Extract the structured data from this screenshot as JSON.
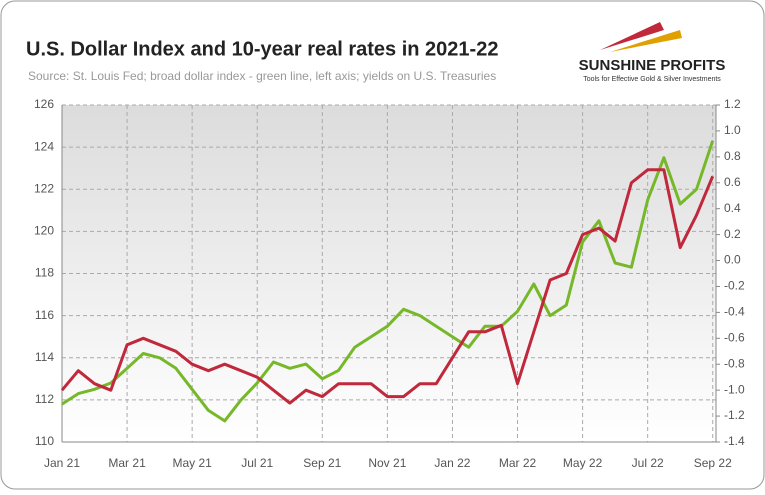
{
  "chart_data": {
    "type": "line",
    "title": "U.S. Dollar Index and 10-year real rates in 2021-22",
    "subtitle": "Source: St. Louis Fed; broad dollar index - green line, left axis; yields on U.S. Treasuries",
    "logo": {
      "name": "SUNSHINE PROFITS",
      "tagline": "Tools for Effective Gold & Silver Investments"
    },
    "x": [
      0,
      0.5,
      1,
      1.5,
      2,
      2.5,
      3,
      3.5,
      4,
      4.5,
      5,
      5.5,
      6,
      6.5,
      7,
      7.5,
      8,
      8.5,
      9,
      9.5,
      10,
      10.5,
      11,
      11.5,
      12,
      12.5,
      13,
      13.5,
      14,
      14.5,
      15,
      15.5,
      16,
      16.5,
      17,
      17.5,
      18,
      18.5,
      19,
      19.5,
      20
    ],
    "xlim": [
      0,
      20.1
    ],
    "xticks": [
      {
        "value": 0,
        "label": "Jan 21"
      },
      {
        "value": 2,
        "label": "Mar 21"
      },
      {
        "value": 4,
        "label": "May 21"
      },
      {
        "value": 6,
        "label": "Jul 21"
      },
      {
        "value": 8,
        "label": "Sep 21"
      },
      {
        "value": 10,
        "label": "Nov 21"
      },
      {
        "value": 12,
        "label": "Jan 22"
      },
      {
        "value": 14,
        "label": "Mar 22"
      },
      {
        "value": 16,
        "label": "May 22"
      },
      {
        "value": 18,
        "label": "Jul 22"
      },
      {
        "value": 20,
        "label": "Sep 22"
      }
    ],
    "ylim": [
      110,
      126
    ],
    "yticks": [
      110,
      112,
      114,
      116,
      118,
      120,
      122,
      124,
      126
    ],
    "y2lim": [
      -1.4,
      1.2
    ],
    "y2ticks": [
      -1.4,
      -1.2,
      {
        "value": -1.0,
        "label": "-1.0"
      },
      -0.8,
      -0.6,
      -0.4,
      -0.2,
      {
        "value": 0.0,
        "label": "0.0"
      },
      0.2,
      0.4,
      0.6,
      0.8,
      {
        "value": 1.0,
        "label": "1.0"
      },
      1.2
    ],
    "grid": true,
    "series": [
      {
        "color": "#76b82a",
        "axis": "y",
        "values": [
          111.8,
          112.3,
          112.5,
          112.8,
          113.5,
          114.2,
          114,
          113.5,
          112.5,
          111.5,
          111,
          112,
          112.8,
          113.8,
          113.5,
          113.7,
          113,
          113.4,
          114.5,
          115,
          115.5,
          116.3,
          116,
          115.5,
          115,
          114.5,
          115.5,
          115.5,
          116.2,
          117.5,
          116,
          116.5,
          119.5,
          120.5,
          118.5,
          118.3,
          121.5,
          123.5,
          121.3,
          122,
          124.3
        ]
      },
      {
        "color": "#c0283c",
        "axis": "y2",
        "values": [
          -1.0,
          -0.85,
          -0.95,
          -1.0,
          -0.65,
          -0.6,
          -0.65,
          -0.7,
          -0.8,
          -0.85,
          -0.8,
          -0.85,
          -0.9,
          -1.0,
          -1.1,
          -1.0,
          -1.05,
          -0.95,
          -0.95,
          -0.95,
          -1.05,
          -1.05,
          -0.95,
          -0.95,
          -0.75,
          -0.55,
          -0.55,
          -0.5,
          -0.95,
          -0.55,
          -0.15,
          -0.1,
          0.2,
          0.25,
          0.15,
          0.6,
          0.7,
          0.7,
          0.1,
          0.35,
          0.65
        ]
      }
    ]
  }
}
